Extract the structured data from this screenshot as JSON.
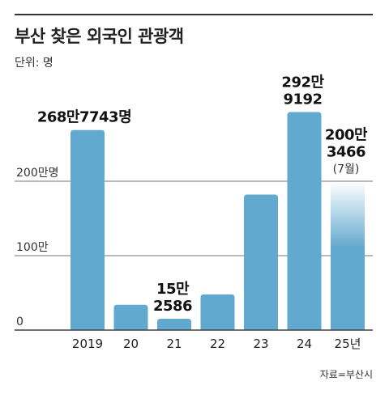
{
  "title": "부산 찾은 외국인 관광객",
  "unit": "단위: 명",
  "source": "자료=부산시",
  "colors": {
    "bar": "#62a9cf",
    "grid": "#777777",
    "axis": "#444444"
  },
  "chart_data": {
    "type": "bar",
    "title": "부산 찾은 외국인 관광객",
    "ylabel": "",
    "xlabel": "",
    "categories": [
      "2019",
      "20",
      "21",
      "22",
      "23",
      "24",
      "25년"
    ],
    "values": [
      2687743,
      340000,
      152586,
      480000,
      1820000,
      2929192,
      2003466
    ],
    "ylim": [
      0,
      3000000
    ],
    "yticks": [
      {
        "value": 0,
        "label": "0"
      },
      {
        "value": 1000000,
        "label": "100만"
      },
      {
        "value": 2000000,
        "label": "200만명"
      }
    ],
    "grid": true,
    "data_labels": [
      {
        "index": 0,
        "lines": [
          "268만7743명"
        ]
      },
      {
        "index": 2,
        "lines": [
          "15만",
          "2586"
        ]
      },
      {
        "index": 5,
        "lines": [
          "292만",
          "9192"
        ]
      },
      {
        "index": 6,
        "lines": [
          "200만",
          "3466"
        ],
        "note": "(7월)"
      }
    ],
    "partial_period_index": 6
  }
}
